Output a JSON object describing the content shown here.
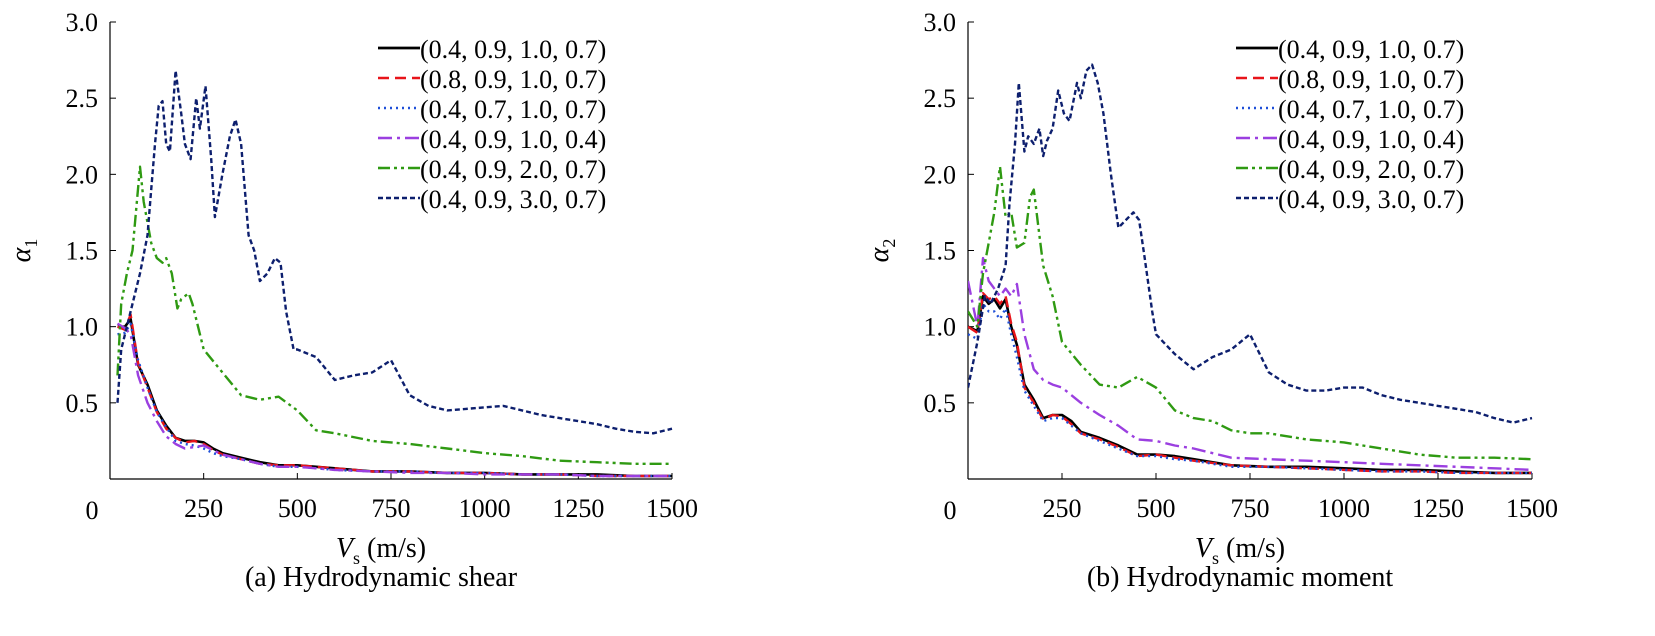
{
  "chart_data": [
    {
      "type": "line",
      "title": "",
      "caption": "(a)  Hydrodynamic shear",
      "xlabel": {
        "main": "V",
        "sub": "s",
        "unit": " (m/s)"
      },
      "ylabel": {
        "main": "α",
        "sub": "1"
      },
      "xlim": [
        0,
        1500
      ],
      "ylim": [
        0,
        3.0
      ],
      "xticks": [
        250,
        500,
        750,
        1000,
        1250,
        1500
      ],
      "xtick_labels": [
        "250",
        "500",
        "750",
        "1000",
        "1250",
        "1500"
      ],
      "yticks": [
        0.5,
        1.0,
        1.5,
        2.0,
        2.5,
        3.0
      ],
      "ytick_labels": [
        "0.5",
        "1.0",
        "1.5",
        "2.0",
        "2.5",
        "3.0"
      ],
      "origin_label": "0",
      "grid": false,
      "legend_position": "top-right",
      "series": [
        {
          "name": "(0.4, 0.9, 1.0, 0.7)",
          "color": "#000000",
          "dash": "solid",
          "x": [
            20,
            40,
            55,
            75,
            100,
            125,
            150,
            175,
            200,
            225,
            250,
            275,
            300,
            350,
            400,
            450,
            500,
            550,
            600,
            700,
            800,
            900,
            1000,
            1100,
            1200,
            1300,
            1400,
            1500
          ],
          "y": [
            1.0,
            1.0,
            1.05,
            0.75,
            0.62,
            0.45,
            0.35,
            0.27,
            0.25,
            0.25,
            0.24,
            0.2,
            0.17,
            0.14,
            0.11,
            0.09,
            0.09,
            0.08,
            0.07,
            0.05,
            0.05,
            0.04,
            0.04,
            0.03,
            0.03,
            0.03,
            0.02,
            0.02
          ]
        },
        {
          "name": "(0.8, 0.9, 1.0, 0.7)",
          "color": "#e8141a",
          "dash": "dash",
          "x": [
            20,
            40,
            55,
            75,
            100,
            125,
            150,
            175,
            200,
            225,
            250,
            275,
            300,
            350,
            400,
            450,
            500,
            550,
            600,
            700,
            800,
            900,
            1000,
            1100,
            1200,
            1300,
            1400,
            1500
          ],
          "y": [
            1.0,
            0.98,
            1.08,
            0.76,
            0.6,
            0.44,
            0.33,
            0.27,
            0.24,
            0.25,
            0.23,
            0.19,
            0.16,
            0.13,
            0.1,
            0.09,
            0.09,
            0.08,
            0.07,
            0.05,
            0.05,
            0.04,
            0.04,
            0.03,
            0.03,
            0.02,
            0.02,
            0.02
          ]
        },
        {
          "name": "(0.4, 0.7, 1.0, 0.7)",
          "color": "#1e4fd8",
          "dash": "dot",
          "x": [
            20,
            40,
            55,
            75,
            100,
            125,
            150,
            175,
            200,
            225,
            250,
            275,
            300,
            350,
            400,
            450,
            500,
            550,
            600,
            700,
            800,
            900,
            1000,
            1100,
            1200,
            1300,
            1400,
            1500
          ],
          "y": [
            0.95,
            0.96,
            1.02,
            0.78,
            0.6,
            0.44,
            0.34,
            0.25,
            0.23,
            0.22,
            0.2,
            0.17,
            0.15,
            0.13,
            0.1,
            0.08,
            0.08,
            0.07,
            0.06,
            0.05,
            0.05,
            0.04,
            0.04,
            0.03,
            0.03,
            0.02,
            0.02,
            0.02
          ]
        },
        {
          "name": "(0.4, 0.9, 1.0, 0.4)",
          "color": "#9b3fe0",
          "dash": "dashdot",
          "x": [
            20,
            40,
            55,
            75,
            100,
            125,
            150,
            175,
            200,
            225,
            250,
            275,
            300,
            350,
            400,
            450,
            500,
            550,
            600,
            700,
            800,
            900,
            1000,
            1100,
            1200,
            1300,
            1400,
            1500
          ],
          "y": [
            1.02,
            0.99,
            0.95,
            0.68,
            0.5,
            0.38,
            0.28,
            0.23,
            0.2,
            0.21,
            0.22,
            0.19,
            0.16,
            0.13,
            0.1,
            0.08,
            0.08,
            0.07,
            0.06,
            0.05,
            0.04,
            0.04,
            0.03,
            0.03,
            0.03,
            0.02,
            0.02,
            0.02
          ]
        },
        {
          "name": "(0.4, 0.9, 2.0, 0.7)",
          "color": "#2f9a12",
          "dash": "dashdotdot",
          "x": [
            20,
            30,
            45,
            60,
            80,
            90,
            110,
            125,
            140,
            150,
            165,
            180,
            190,
            200,
            210,
            220,
            250,
            300,
            350,
            400,
            450,
            500,
            550,
            600,
            700,
            800,
            900,
            1000,
            1100,
            1200,
            1300,
            1400,
            1500
          ],
          "y": [
            0.68,
            1.15,
            1.35,
            1.5,
            2.05,
            1.82,
            1.55,
            1.45,
            1.42,
            1.45,
            1.35,
            1.12,
            1.18,
            1.2,
            1.22,
            1.15,
            0.85,
            0.7,
            0.55,
            0.52,
            0.54,
            0.45,
            0.32,
            0.3,
            0.25,
            0.23,
            0.2,
            0.17,
            0.15,
            0.12,
            0.11,
            0.1,
            0.1
          ]
        },
        {
          "name": "(0.4, 0.9, 3.0, 0.7)",
          "color": "#0d1f6e",
          "dash": "shortdash",
          "x": [
            20,
            30,
            45,
            60,
            80,
            100,
            110,
            120,
            130,
            140,
            150,
            160,
            175,
            190,
            200,
            215,
            230,
            240,
            255,
            270,
            280,
            300,
            320,
            335,
            350,
            370,
            385,
            400,
            420,
            440,
            455,
            470,
            490,
            500,
            550,
            600,
            650,
            700,
            750,
            800,
            850,
            900,
            950,
            1000,
            1050,
            1100,
            1150,
            1200,
            1250,
            1300,
            1350,
            1400,
            1450,
            1500
          ],
          "y": [
            0.5,
            0.85,
            1.0,
            1.15,
            1.35,
            1.6,
            1.9,
            2.2,
            2.45,
            2.48,
            2.2,
            2.15,
            2.68,
            2.4,
            2.2,
            2.1,
            2.5,
            2.3,
            2.58,
            2.1,
            1.72,
            2.0,
            2.25,
            2.36,
            2.2,
            1.6,
            1.5,
            1.3,
            1.35,
            1.45,
            1.42,
            1.1,
            0.85,
            0.85,
            0.8,
            0.65,
            0.68,
            0.7,
            0.78,
            0.55,
            0.48,
            0.45,
            0.46,
            0.47,
            0.48,
            0.45,
            0.42,
            0.4,
            0.38,
            0.36,
            0.33,
            0.31,
            0.3,
            0.33
          ]
        }
      ]
    },
    {
      "type": "line",
      "title": "",
      "caption": "(b) Hydrodynamic moment",
      "xlabel": {
        "main": "V",
        "sub": "s",
        "unit": " (m/s)"
      },
      "ylabel": {
        "main": "α",
        "sub": "2"
      },
      "xlim": [
        0,
        1500
      ],
      "ylim": [
        0,
        3.0
      ],
      "xticks": [
        250,
        500,
        750,
        1000,
        1250,
        1500
      ],
      "xtick_labels": [
        "250",
        "500",
        "750",
        "1000",
        "1250",
        "1500"
      ],
      "yticks": [
        0.5,
        1.0,
        1.5,
        2.0,
        2.5,
        3.0
      ],
      "ytick_labels": [
        "0.5",
        "1.0",
        "1.5",
        "2.0",
        "2.5",
        "3.0"
      ],
      "origin_label": "0",
      "grid": false,
      "legend_position": "top-right",
      "series": [
        {
          "name": "(0.4, 0.9, 1.0, 0.7)",
          "color": "#000000",
          "dash": "solid",
          "x": [
            0,
            25,
            40,
            55,
            70,
            85,
            100,
            115,
            130,
            150,
            175,
            200,
            225,
            250,
            275,
            300,
            350,
            400,
            450,
            500,
            550,
            600,
            700,
            800,
            900,
            1000,
            1100,
            1200,
            1300,
            1400,
            1500
          ],
          "y": [
            1.0,
            0.97,
            1.2,
            1.15,
            1.18,
            1.12,
            1.18,
            1.0,
            0.88,
            0.62,
            0.52,
            0.4,
            0.42,
            0.42,
            0.38,
            0.31,
            0.27,
            0.22,
            0.16,
            0.16,
            0.15,
            0.13,
            0.09,
            0.08,
            0.08,
            0.07,
            0.06,
            0.06,
            0.05,
            0.04,
            0.04
          ]
        },
        {
          "name": "(0.8, 0.9, 1.0, 0.7)",
          "color": "#e8141a",
          "dash": "dash",
          "x": [
            0,
            25,
            40,
            55,
            70,
            85,
            100,
            115,
            130,
            150,
            175,
            200,
            225,
            250,
            275,
            300,
            350,
            400,
            450,
            500,
            550,
            600,
            700,
            800,
            900,
            1000,
            1100,
            1200,
            1300,
            1400,
            1500
          ],
          "y": [
            1.0,
            0.96,
            1.22,
            1.18,
            1.2,
            1.15,
            1.2,
            1.02,
            0.9,
            0.6,
            0.5,
            0.39,
            0.42,
            0.41,
            0.36,
            0.3,
            0.26,
            0.21,
            0.15,
            0.16,
            0.14,
            0.12,
            0.09,
            0.08,
            0.07,
            0.06,
            0.05,
            0.05,
            0.04,
            0.04,
            0.04
          ]
        },
        {
          "name": "(0.4, 0.7, 1.0, 0.7)",
          "color": "#1e4fd8",
          "dash": "dot",
          "x": [
            0,
            25,
            40,
            55,
            70,
            85,
            100,
            115,
            130,
            150,
            175,
            200,
            225,
            250,
            275,
            300,
            350,
            400,
            450,
            500,
            550,
            600,
            700,
            800,
            900,
            1000,
            1100,
            1200,
            1300,
            1400,
            1500
          ],
          "y": [
            0.95,
            0.92,
            1.15,
            1.1,
            1.1,
            1.05,
            1.12,
            0.95,
            0.8,
            0.58,
            0.48,
            0.38,
            0.4,
            0.4,
            0.35,
            0.3,
            0.25,
            0.2,
            0.15,
            0.15,
            0.13,
            0.12,
            0.08,
            0.08,
            0.07,
            0.06,
            0.05,
            0.05,
            0.04,
            0.04,
            0.04
          ]
        },
        {
          "name": "(0.4, 0.9, 1.0, 0.4)",
          "color": "#9b3fe0",
          "dash": "dashdot",
          "x": [
            0,
            25,
            40,
            55,
            70,
            85,
            100,
            115,
            130,
            150,
            175,
            200,
            225,
            250,
            275,
            300,
            350,
            400,
            450,
            500,
            550,
            600,
            700,
            800,
            900,
            1000,
            1100,
            1200,
            1300,
            1400,
            1500
          ],
          "y": [
            1.3,
            1.0,
            1.45,
            1.3,
            1.25,
            1.2,
            1.25,
            1.2,
            1.28,
            0.95,
            0.72,
            0.65,
            0.62,
            0.6,
            0.55,
            0.5,
            0.42,
            0.35,
            0.26,
            0.25,
            0.22,
            0.2,
            0.14,
            0.13,
            0.12,
            0.11,
            0.1,
            0.09,
            0.08,
            0.07,
            0.06
          ]
        },
        {
          "name": "(0.4, 0.9, 2.0, 0.7)",
          "color": "#2f9a12",
          "dash": "dashdotdot",
          "x": [
            0,
            25,
            40,
            55,
            70,
            85,
            100,
            115,
            130,
            150,
            165,
            175,
            190,
            200,
            225,
            250,
            300,
            350,
            400,
            450,
            500,
            550,
            600,
            650,
            700,
            750,
            800,
            900,
            1000,
            1050,
            1100,
            1200,
            1300,
            1400,
            1500
          ],
          "y": [
            1.1,
            1.0,
            1.35,
            1.55,
            1.75,
            2.05,
            1.72,
            1.75,
            1.52,
            1.55,
            1.85,
            1.9,
            1.6,
            1.4,
            1.2,
            0.9,
            0.75,
            0.62,
            0.6,
            0.67,
            0.6,
            0.45,
            0.4,
            0.38,
            0.32,
            0.3,
            0.3,
            0.26,
            0.24,
            0.22,
            0.2,
            0.16,
            0.14,
            0.14,
            0.13
          ]
        },
        {
          "name": "(0.4, 0.9, 3.0, 0.7)",
          "color": "#0d1f6e",
          "dash": "shortdash",
          "x": [
            0,
            25,
            45,
            60,
            80,
            100,
            110,
            125,
            135,
            150,
            160,
            175,
            190,
            200,
            210,
            225,
            240,
            255,
            270,
            290,
            300,
            315,
            330,
            345,
            360,
            380,
            400,
            420,
            440,
            455,
            470,
            490,
            500,
            550,
            600,
            650,
            700,
            750,
            800,
            850,
            900,
            950,
            1000,
            1050,
            1100,
            1150,
            1200,
            1250,
            1300,
            1350,
            1400,
            1450,
            1500
          ],
          "y": [
            0.6,
            0.9,
            1.2,
            1.15,
            1.25,
            1.4,
            1.8,
            2.2,
            2.6,
            2.15,
            2.25,
            2.2,
            2.3,
            2.12,
            2.22,
            2.3,
            2.55,
            2.4,
            2.35,
            2.6,
            2.5,
            2.68,
            2.72,
            2.6,
            2.4,
            2.0,
            1.65,
            1.7,
            1.75,
            1.7,
            1.45,
            1.1,
            0.95,
            0.82,
            0.72,
            0.8,
            0.85,
            0.95,
            0.7,
            0.62,
            0.58,
            0.58,
            0.6,
            0.6,
            0.55,
            0.52,
            0.5,
            0.48,
            0.46,
            0.44,
            0.4,
            0.37,
            0.4
          ]
        }
      ]
    }
  ]
}
